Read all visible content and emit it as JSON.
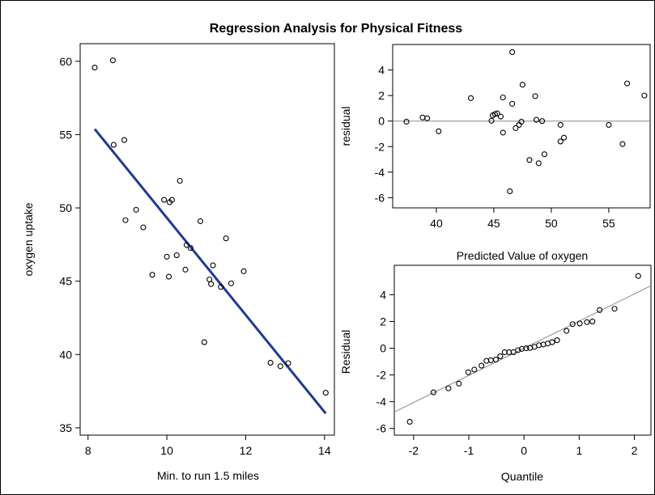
{
  "figure": {
    "title": "Regression Analysis for Physical Fitness"
  },
  "chart_data": [
    {
      "type": "scatter",
      "name": "fit-plot",
      "xlabel": "Min. to run 1.5 miles",
      "ylabel": "oxygen uptake",
      "xlim": [
        7.8,
        14.25
      ],
      "ylim": [
        34.5,
        61.2
      ],
      "xticks": [
        8,
        10,
        12,
        14
      ],
      "yticks": [
        35,
        40,
        45,
        50,
        55,
        60
      ],
      "grid": false,
      "points": [
        {
          "x": 8.17,
          "y": 59.57
        },
        {
          "x": 8.63,
          "y": 60.06
        },
        {
          "x": 8.65,
          "y": 54.3
        },
        {
          "x": 8.92,
          "y": 54.63
        },
        {
          "x": 8.95,
          "y": 49.16
        },
        {
          "x": 9.22,
          "y": 49.87
        },
        {
          "x": 9.4,
          "y": 48.67
        },
        {
          "x": 9.63,
          "y": 45.44
        },
        {
          "x": 9.93,
          "y": 50.55
        },
        {
          "x": 10.0,
          "y": 46.67
        },
        {
          "x": 10.05,
          "y": 45.31
        },
        {
          "x": 10.07,
          "y": 50.39
        },
        {
          "x": 10.13,
          "y": 50.54
        },
        {
          "x": 10.25,
          "y": 46.77
        },
        {
          "x": 10.33,
          "y": 51.85
        },
        {
          "x": 10.47,
          "y": 45.79
        },
        {
          "x": 10.5,
          "y": 47.47
        },
        {
          "x": 10.6,
          "y": 47.27
        },
        {
          "x": 10.85,
          "y": 49.09
        },
        {
          "x": 10.95,
          "y": 40.84
        },
        {
          "x": 11.08,
          "y": 45.12
        },
        {
          "x": 11.12,
          "y": 44.81
        },
        {
          "x": 11.17,
          "y": 46.08
        },
        {
          "x": 11.37,
          "y": 44.61
        },
        {
          "x": 11.5,
          "y": 47.92
        },
        {
          "x": 11.63,
          "y": 44.85
        },
        {
          "x": 11.95,
          "y": 45.68
        },
        {
          "x": 12.63,
          "y": 39.44
        },
        {
          "x": 12.88,
          "y": 39.2
        },
        {
          "x": 13.08,
          "y": 39.41
        },
        {
          "x": 14.03,
          "y": 37.39
        }
      ],
      "fit_line": {
        "intercept": 82.42,
        "slope": -3.31,
        "x_from": 8.17,
        "x_to": 14.03,
        "color": "#1f3a93"
      }
    },
    {
      "type": "scatter",
      "name": "residual-plot",
      "xlabel": "Predicted Value of oxygen",
      "ylabel": "residual",
      "xlim": [
        36.2,
        58.6
      ],
      "ylim": [
        -6.8,
        6.0
      ],
      "xticks": [
        40,
        45,
        50,
        55
      ],
      "yticks": [
        -6,
        -4,
        -2,
        0,
        2,
        4
      ],
      "grid": false,
      "reference_line": 0,
      "points": [
        {
          "x": 37.4,
          "y": -0.05
        },
        {
          "x": 38.8,
          "y": 0.28
        },
        {
          "x": 39.2,
          "y": 0.22
        },
        {
          "x": 40.2,
          "y": -0.8
        },
        {
          "x": 43.0,
          "y": 1.8
        },
        {
          "x": 44.8,
          "y": 0.02
        },
        {
          "x": 44.9,
          "y": 0.45
        },
        {
          "x": 45.1,
          "y": 0.55
        },
        {
          "x": 45.3,
          "y": 0.6
        },
        {
          "x": 45.6,
          "y": 0.35
        },
        {
          "x": 45.8,
          "y": -0.9
        },
        {
          "x": 45.8,
          "y": 1.85
        },
        {
          "x": 46.4,
          "y": -5.5
        },
        {
          "x": 46.6,
          "y": 5.4
        },
        {
          "x": 46.6,
          "y": 1.35
        },
        {
          "x": 46.9,
          "y": -0.55
        },
        {
          "x": 47.2,
          "y": -0.3
        },
        {
          "x": 47.4,
          "y": -0.05
        },
        {
          "x": 47.5,
          "y": 2.85
        },
        {
          "x": 48.1,
          "y": -3.05
        },
        {
          "x": 48.6,
          "y": 1.95
        },
        {
          "x": 48.7,
          "y": 0.1
        },
        {
          "x": 48.9,
          "y": -3.3
        },
        {
          "x": 49.2,
          "y": 0.0
        },
        {
          "x": 49.4,
          "y": -2.6
        },
        {
          "x": 50.8,
          "y": -1.6
        },
        {
          "x": 50.8,
          "y": -0.3
        },
        {
          "x": 51.1,
          "y": -1.3
        },
        {
          "x": 55.0,
          "y": -0.3
        },
        {
          "x": 56.2,
          "y": -1.8
        },
        {
          "x": 56.6,
          "y": 2.95
        },
        {
          "x": 58.1,
          "y": 2.0
        }
      ]
    },
    {
      "type": "scatter",
      "name": "qq-plot",
      "xlabel": "Quantile",
      "ylabel": "Residual",
      "xlim": [
        -2.35,
        2.3
      ],
      "ylim": [
        -6.5,
        6.2
      ],
      "xticks": [
        -2,
        -1,
        0,
        1,
        2
      ],
      "yticks": [
        -6,
        -4,
        -2,
        0,
        2,
        4
      ],
      "grid": false,
      "reference_line": {
        "intercept": 0.0,
        "slope": 2.03
      },
      "points": [
        {
          "x": -2.07,
          "y": -5.5
        },
        {
          "x": -1.64,
          "y": -3.3
        },
        {
          "x": -1.37,
          "y": -3.0
        },
        {
          "x": -1.18,
          "y": -2.65
        },
        {
          "x": -1.01,
          "y": -1.8
        },
        {
          "x": -0.9,
          "y": -1.6
        },
        {
          "x": -0.77,
          "y": -1.3
        },
        {
          "x": -0.68,
          "y": -0.95
        },
        {
          "x": -0.6,
          "y": -0.9
        },
        {
          "x": -0.51,
          "y": -0.85
        },
        {
          "x": -0.43,
          "y": -0.6
        },
        {
          "x": -0.35,
          "y": -0.3
        },
        {
          "x": -0.27,
          "y": -0.3
        },
        {
          "x": -0.19,
          "y": -0.3
        },
        {
          "x": -0.11,
          "y": -0.15
        },
        {
          "x": -0.04,
          "y": -0.05
        },
        {
          "x": 0.04,
          "y": 0.0
        },
        {
          "x": 0.11,
          "y": 0.02
        },
        {
          "x": 0.19,
          "y": 0.1
        },
        {
          "x": 0.27,
          "y": 0.22
        },
        {
          "x": 0.35,
          "y": 0.28
        },
        {
          "x": 0.43,
          "y": 0.35
        },
        {
          "x": 0.51,
          "y": 0.45
        },
        {
          "x": 0.6,
          "y": 0.6
        },
        {
          "x": 0.77,
          "y": 1.3
        },
        {
          "x": 0.88,
          "y": 1.8
        },
        {
          "x": 1.01,
          "y": 1.85
        },
        {
          "x": 1.14,
          "y": 1.95
        },
        {
          "x": 1.24,
          "y": 2.0
        },
        {
          "x": 1.37,
          "y": 2.85
        },
        {
          "x": 1.64,
          "y": 2.95
        },
        {
          "x": 2.07,
          "y": 5.4
        }
      ]
    }
  ]
}
